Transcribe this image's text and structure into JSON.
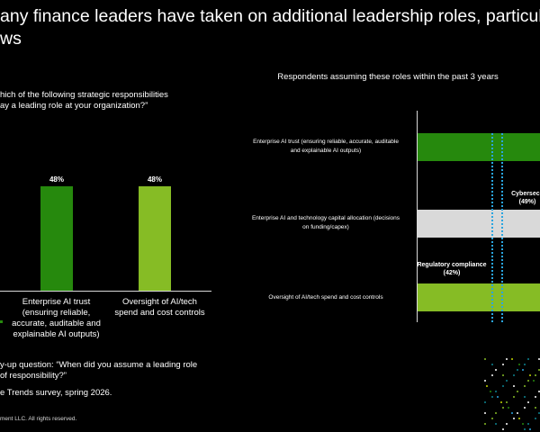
{
  "header": {
    "title_line1": "any finance leaders have taken on additional leadership roles, particularl",
    "title_line2": "ws"
  },
  "left_panel": {
    "question_line1": "hich of the following strategic responsibilities",
    "question_line2": "ay a leading role at your organization?”"
  },
  "chart_data": [
    {
      "type": "bar",
      "title": "",
      "categories": [
        "Enterprise AI trust (ensuring reliable, accurate, auditable and explainable AI outputs)",
        "Oversight of AI/tech spend and cost controls"
      ],
      "category_lines": [
        [
          "Enterprise AI trust",
          "(ensuring reliable,",
          "accurate, auditable and",
          "explainable AI outputs)"
        ],
        [
          "Oversight of AI/tech",
          "spend and cost controls"
        ]
      ],
      "values": [
        48,
        48
      ],
      "value_labels": [
        "48%",
        "48%"
      ],
      "colors": [
        "#26890d",
        "#86bc25"
      ],
      "ylim": [
        0,
        60
      ]
    },
    {
      "type": "bar",
      "orientation": "horizontal",
      "title": "Respondents assuming these roles within the past 3 years",
      "categories": [
        "Enterprise AI trust (ensuring reliable, accurate, auditable and explainable AI outputs)",
        "Enterprise AI and technology capital allocation (decisions on funding/capex)",
        "Oversight of AI/tech spend and cost controls"
      ],
      "category_lines": [
        [
          "Enterprise AI trust (ensuring reliable, accurate, auditable",
          "and explainable AI outputs)"
        ],
        [
          "Enterprise AI and technology capital allocation (decisions",
          "on funding/capex)"
        ],
        [
          "Oversight of AI/tech spend and cost controls"
        ]
      ],
      "colors": [
        "#26890d",
        "#d9d9d9",
        "#86bc25"
      ],
      "reference_lines": [
        {
          "name": "Regulatory compliance",
          "value_label": "(42%)"
        },
        {
          "name": "Cybersecu",
          "value_label": "(49%)"
        }
      ]
    }
  ],
  "footer": {
    "note_line1": "y-up question: “When did you assume a leading role",
    "note_line2": "of responsibility?”",
    "source": "e Trends survey, spring 2026.",
    "copyright": "ment LLC. All rights reserved."
  }
}
